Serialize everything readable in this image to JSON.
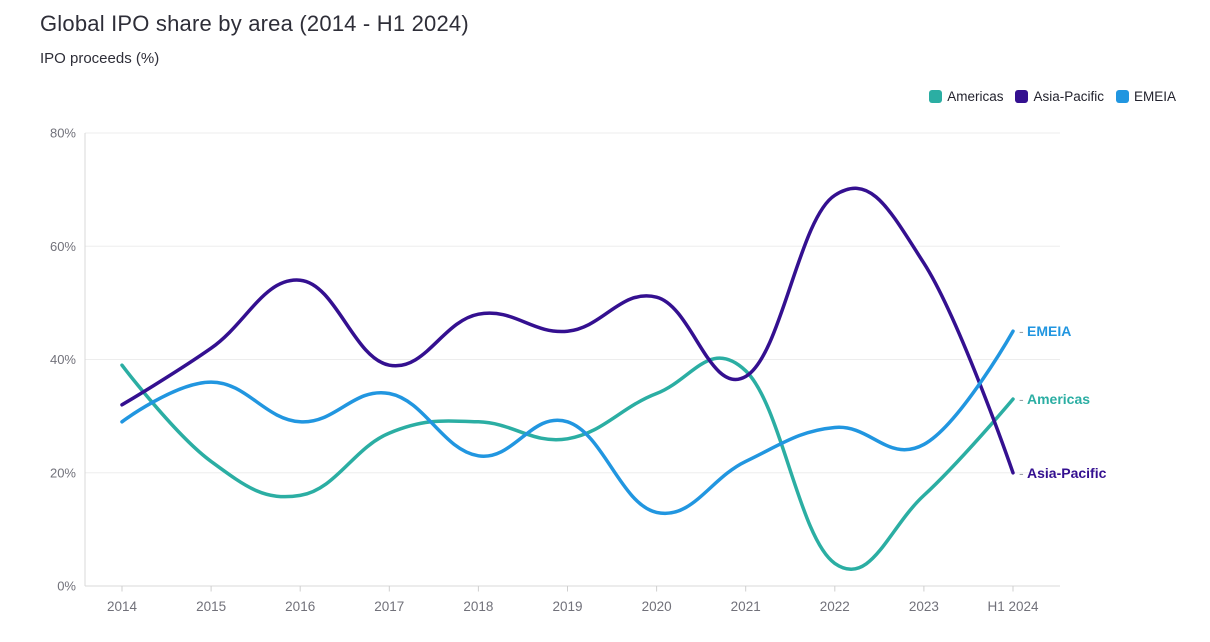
{
  "header": {
    "title": "Global IPO share by area (2014 - H1 2024)",
    "subtitle": "IPO proceeds (%)"
  },
  "chart_data": {
    "type": "line",
    "title": "Global IPO share by area (2014 - H1 2024)",
    "ylabel": "IPO proceeds (%)",
    "xlabel": "",
    "categories": [
      "2014",
      "2015",
      "2016",
      "2017",
      "2018",
      "2019",
      "2020",
      "2021",
      "2022",
      "2023",
      "H1 2024"
    ],
    "series": [
      {
        "name": "Americas",
        "color": "#2BAEA3",
        "values": [
          39,
          22,
          16,
          27,
          29,
          26,
          34,
          38,
          4,
          16,
          33
        ]
      },
      {
        "name": "Asia-Pacific",
        "color": "#341090",
        "values": [
          32,
          42,
          54,
          39,
          48,
          45,
          51,
          37,
          69,
          57,
          20
        ]
      },
      {
        "name": "EMEIA",
        "color": "#2196E0",
        "values": [
          29,
          36,
          29,
          34,
          23,
          29,
          13,
          22,
          28,
          25,
          45
        ]
      }
    ],
    "ylim": [
      0,
      80
    ],
    "ytick_values": [
      0,
      20,
      40,
      60,
      80
    ],
    "ytick_labels": [
      "0%",
      "20%",
      "40%",
      "60%",
      "80%"
    ],
    "grid": "horizontal",
    "legend_position": "top-right",
    "end_label_dash": "-",
    "smoothing": "spline"
  },
  "styles": {
    "axis_text_color": "#71717a",
    "grid_line_color": "#ededed",
    "axis_line_color": "#d8d8d8",
    "tick_color": "#cfcfcf",
    "legend_text_color": "#23232e",
    "title_color": "#2e2e38",
    "end_label_dash_color": "#9aa0a6",
    "background": "#ffffff"
  }
}
